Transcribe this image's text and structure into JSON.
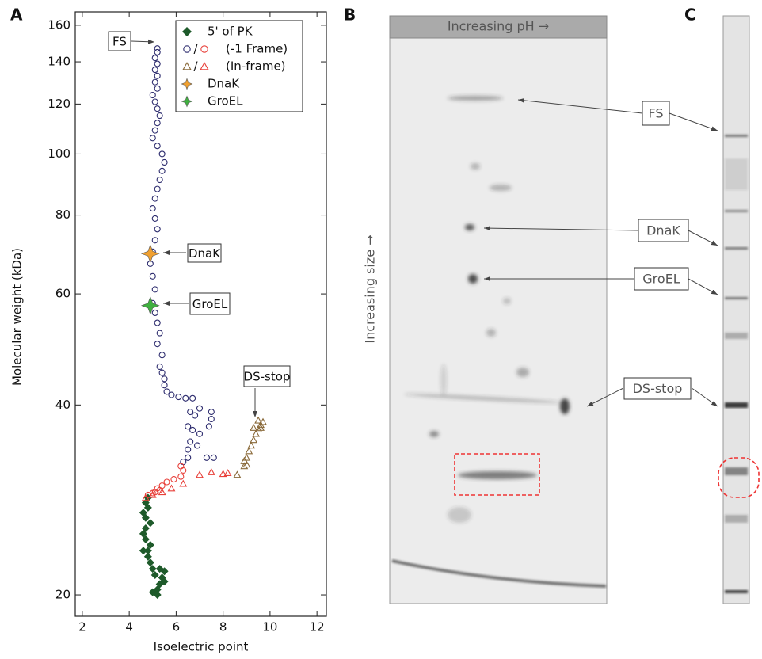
{
  "chart_data": {
    "type": "scatter",
    "y_label": "Molecular weight (kDa)",
    "x_label": "Isoelectric point",
    "log_y": true,
    "xlim": [
      1.7,
      12.4
    ],
    "ylim": [
      18.5,
      168
    ],
    "xticks": [
      2,
      4,
      6,
      8,
      10,
      12
    ],
    "yticks": [
      20,
      40,
      60,
      80,
      100,
      120,
      140,
      160
    ],
    "legend_separator": "/",
    "series": [
      {
        "name": "5' of PK",
        "marker": "diamond",
        "parts": [
          {
            "color": "#1e5a2a",
            "x": [
              4.8,
              4.7,
              4.8,
              4.6,
              4.7,
              4.9,
              4.7,
              4.6,
              4.7,
              4.9,
              4.6,
              4.8,
              4.8,
              4.9,
              5.0,
              5.3,
              5.5,
              5.4,
              5.1,
              5.5,
              5.3,
              5.2,
              5.0,
              5.2
            ],
            "values": [
              28.5,
              28,
              27.5,
              27,
              26.5,
              26,
              25.5,
              25,
              24.5,
              24,
              23.5,
              23.5,
              23,
              22.5,
              22,
              22,
              21.8,
              21.3,
              21.5,
              21,
              20.8,
              20.4,
              20.2,
              20
            ]
          }
        ]
      },
      {
        "name": "(-1 Frame)",
        "marker": "circle",
        "parts": [
          {
            "color": "#2d2c6e",
            "x": [
              5.2,
              5.2,
              5.1,
              5.2,
              5.1,
              5.2,
              5.1,
              5.2,
              5.0,
              5.1,
              5.2,
              5.3,
              5.2,
              5.1,
              5.0,
              5.2,
              5.4,
              5.5,
              5.4,
              5.3,
              5.2,
              5.1,
              5.0,
              5.1,
              5.2,
              5.1,
              5.0,
              4.9,
              5.0,
              5.1,
              5.0,
              5.1,
              5.2,
              5.3,
              5.2,
              5.4,
              5.3,
              5.4,
              5.5,
              5.5,
              5.6,
              5.8,
              6.1,
              6.4,
              6.7,
              6.6,
              6.8,
              7.0,
              7.5,
              7.5,
              6.5,
              6.7,
              7.0,
              7.4,
              6.6,
              6.9,
              6.5,
              6.5,
              7.3,
              7.6,
              6.3
            ],
            "values": [
              147,
              145,
              142,
              139,
              136,
              133,
              130,
              127,
              124,
              121,
              118,
              115,
              112,
              109,
              106,
              103,
              100,
              97,
              94,
              91,
              88,
              85,
              82,
              79,
              76,
              73,
              70,
              67,
              64,
              61,
              58,
              56,
              54,
              52,
              50,
              48,
              46,
              45,
              44,
              43,
              42,
              41.5,
              41.2,
              41,
              41,
              39,
              38.5,
              39.5,
              39,
              38,
              37,
              36.5,
              36,
              37,
              35,
              34.5,
              34,
              33,
              33,
              33,
              32.5
            ]
          },
          {
            "color": "#e8403a",
            "x": [
              5.0,
              5.2,
              5.4,
              5.6,
              5.9,
              6.2,
              6.3,
              6.2,
              5.3,
              4.8,
              5.1
            ],
            "values": [
              29,
              29.5,
              29.8,
              30.2,
              30.5,
              30.8,
              31.5,
              32,
              29.3,
              28.8,
              29.1
            ]
          }
        ]
      },
      {
        "name": "(In-frame)",
        "marker": "triangle",
        "parts": [
          {
            "color": "#8a6a3a",
            "x": [
              8.9,
              9.0,
              9.1,
              9.2,
              9.3,
              9.4,
              9.5,
              9.6,
              9.7,
              9.3,
              9.5,
              8.9,
              9.0,
              8.6,
              9.6
            ],
            "values": [
              32,
              33,
              33.8,
              34.5,
              35.2,
              36,
              36.6,
              37.2,
              37.6,
              36.8,
              37.8,
              32.6,
              32.2,
              31,
              36.8
            ]
          },
          {
            "color": "#e8403a",
            "x": [
              4.7,
              5.0,
              5.4,
              5.8,
              6.3,
              7.0,
              7.5,
              8.2,
              8.0
            ],
            "values": [
              28.5,
              28.8,
              29.1,
              29.5,
              30,
              31,
              31.3,
              31.2,
              31.1
            ]
          }
        ]
      },
      {
        "name": "DnaK",
        "marker": "star",
        "parts": [
          {
            "color": "#f0a030",
            "x": [
              4.9
            ],
            "values": [
              69.5
            ]
          }
        ]
      },
      {
        "name": "GroEL",
        "marker": "star",
        "parts": [
          {
            "color": "#40b040",
            "x": [
              4.9
            ],
            "values": [
              57.5
            ]
          }
        ]
      }
    ],
    "annotations": [
      "FS",
      "DnaK",
      "GroEL",
      "DS-stop"
    ]
  },
  "figure": {
    "panel_labels": [
      "A",
      "B",
      "C"
    ],
    "gel": {
      "ph_label": "Increasing pH →",
      "size_label": "Increasing size →",
      "callouts": [
        "FS",
        "DnaK",
        "GroEL",
        "DS-stop"
      ]
    }
  }
}
